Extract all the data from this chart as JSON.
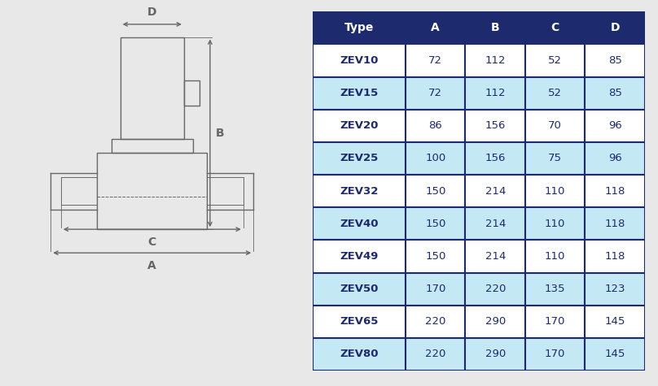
{
  "table_headers": [
    "Type",
    "A",
    "B",
    "C",
    "D"
  ],
  "table_data": [
    [
      "ZEV10",
      "72",
      "112",
      "52",
      "85"
    ],
    [
      "ZEV15",
      "72",
      "112",
      "52",
      "85"
    ],
    [
      "ZEV20",
      "86",
      "156",
      "70",
      "96"
    ],
    [
      "ZEV25",
      "100",
      "156",
      "75",
      "96"
    ],
    [
      "ZEV32",
      "150",
      "214",
      "110",
      "118"
    ],
    [
      "ZEV40",
      "150",
      "214",
      "110",
      "118"
    ],
    [
      "ZEV49",
      "150",
      "214",
      "110",
      "118"
    ],
    [
      "ZEV50",
      "170",
      "220",
      "135",
      "123"
    ],
    [
      "ZEV65",
      "220",
      "290",
      "170",
      "145"
    ],
    [
      "ZEV80",
      "220",
      "290",
      "170",
      "145"
    ]
  ],
  "header_bg_color": "#1e2a6e",
  "header_text_color": "#ffffff",
  "row_white_color": "#ffffff",
  "row_blue_color": "#c5e8f5",
  "table_text_color": "#1e2a6e",
  "table_border_color": "#1e2a6e",
  "bg_color": "#e8e8e8",
  "diagram_line_color": "#666666",
  "diagram_bg": "#f5f5f5"
}
